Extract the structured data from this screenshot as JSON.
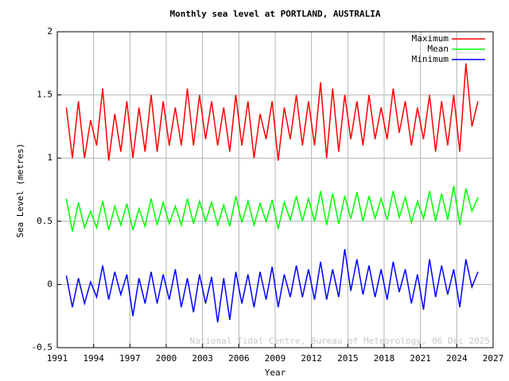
{
  "chart_data": {
    "type": "line",
    "title": "Monthly sea level at PORTLAND, AUSTRALIA",
    "x_label": "Year",
    "y_label": "Sea Level (metres)",
    "annotation": "National Tidal Centre, Bureau of Meteorology, 06 Dec 2025",
    "xlim": [
      1991,
      2027
    ],
    "ylim": [
      -0.5,
      2
    ],
    "xticks": [
      1991,
      1994,
      1997,
      2000,
      2003,
      2006,
      2009,
      2012,
      2015,
      2018,
      2021,
      2024,
      2027
    ],
    "yticks": [
      -0.5,
      0,
      0.5,
      1,
      1.5,
      2
    ],
    "grid": true,
    "legend": "upper-right",
    "x": [
      1991.75,
      1992.25,
      1992.75,
      1993.25,
      1993.75,
      1994.25,
      1994.75,
      1995.25,
      1995.75,
      1996.25,
      1996.75,
      1997.25,
      1997.75,
      1998.25,
      1998.75,
      1999.25,
      1999.75,
      2000.25,
      2000.75,
      2001.25,
      2001.75,
      2002.25,
      2002.75,
      2003.25,
      2003.75,
      2004.25,
      2004.75,
      2005.25,
      2005.75,
      2006.25,
      2006.75,
      2007.25,
      2007.75,
      2008.25,
      2008.75,
      2009.25,
      2009.75,
      2010.25,
      2010.75,
      2011.25,
      2011.75,
      2012.25,
      2012.75,
      2013.25,
      2013.75,
      2014.25,
      2014.75,
      2015.25,
      2015.75,
      2016.25,
      2016.75,
      2017.25,
      2017.75,
      2018.25,
      2018.75,
      2019.25,
      2019.75,
      2020.25,
      2020.75,
      2021.25,
      2021.75,
      2022.25,
      2022.75,
      2023.25,
      2023.75,
      2024.25,
      2024.75,
      2025.25,
      2025.75
    ],
    "series": [
      {
        "name": "Maximum",
        "color": "#ff0000",
        "values": [
          1.4,
          1.0,
          1.45,
          1.0,
          1.3,
          1.1,
          1.55,
          0.98,
          1.35,
          1.05,
          1.45,
          1.0,
          1.4,
          1.05,
          1.5,
          1.05,
          1.45,
          1.1,
          1.4,
          1.1,
          1.55,
          1.1,
          1.5,
          1.15,
          1.45,
          1.1,
          1.4,
          1.05,
          1.5,
          1.1,
          1.45,
          1.0,
          1.35,
          1.15,
          1.45,
          0.98,
          1.4,
          1.15,
          1.5,
          1.1,
          1.45,
          1.1,
          1.6,
          1.0,
          1.55,
          1.05,
          1.5,
          1.15,
          1.45,
          1.1,
          1.5,
          1.15,
          1.4,
          1.15,
          1.55,
          1.2,
          1.45,
          1.1,
          1.4,
          1.15,
          1.5,
          1.05,
          1.45,
          1.1,
          1.5,
          1.05,
          1.75,
          1.25,
          1.45
        ]
      },
      {
        "name": "Mean",
        "color": "#00ff00",
        "values": [
          0.68,
          0.42,
          0.65,
          0.45,
          0.58,
          0.45,
          0.66,
          0.43,
          0.62,
          0.47,
          0.64,
          0.43,
          0.6,
          0.46,
          0.68,
          0.47,
          0.65,
          0.48,
          0.62,
          0.47,
          0.68,
          0.48,
          0.66,
          0.5,
          0.65,
          0.47,
          0.63,
          0.46,
          0.7,
          0.49,
          0.66,
          0.47,
          0.64,
          0.5,
          0.67,
          0.44,
          0.65,
          0.51,
          0.7,
          0.5,
          0.68,
          0.5,
          0.74,
          0.47,
          0.72,
          0.48,
          0.7,
          0.52,
          0.73,
          0.5,
          0.7,
          0.52,
          0.68,
          0.51,
          0.74,
          0.53,
          0.69,
          0.49,
          0.66,
          0.52,
          0.74,
          0.5,
          0.72,
          0.51,
          0.78,
          0.47,
          0.76,
          0.58,
          0.69
        ]
      },
      {
        "name": "Minimum",
        "color": "#0000ff",
        "values": [
          0.07,
          -0.18,
          0.05,
          -0.15,
          0.02,
          -0.1,
          0.15,
          -0.12,
          0.1,
          -0.08,
          0.08,
          -0.25,
          0.05,
          -0.15,
          0.1,
          -0.15,
          0.08,
          -0.12,
          0.12,
          -0.18,
          0.05,
          -0.22,
          0.08,
          -0.15,
          0.06,
          -0.3,
          0.05,
          -0.28,
          0.1,
          -0.15,
          0.08,
          -0.18,
          0.1,
          -0.12,
          0.14,
          -0.18,
          0.08,
          -0.1,
          0.15,
          -0.1,
          0.12,
          -0.12,
          0.18,
          -0.12,
          0.12,
          -0.1,
          0.28,
          -0.05,
          0.2,
          -0.08,
          0.15,
          -0.1,
          0.12,
          -0.12,
          0.18,
          -0.06,
          0.12,
          -0.15,
          0.08,
          -0.2,
          0.2,
          -0.1,
          0.15,
          -0.08,
          0.12,
          -0.18,
          0.2,
          -0.02,
          0.1
        ]
      }
    ]
  }
}
